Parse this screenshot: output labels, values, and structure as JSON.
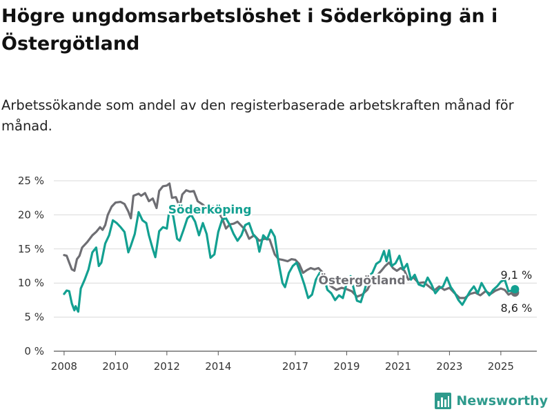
{
  "title": "Högre ungdomsarbetslöshet i Söderköping än i Östergötland",
  "subtitle": "Arbetssökande som andel av den registerbaserade arbetskraften månad för månad.",
  "brand": {
    "name": "Newsworthy",
    "logo_icon": "bar-chart-logo-icon"
  },
  "colors": {
    "soderkoping": "#13a091",
    "ostergotland": "#6e6e73",
    "grid": "#d9d9d9",
    "axis": "#555555"
  },
  "chart_data": {
    "type": "line",
    "ylim": [
      0,
      25
    ],
    "yticks": [
      0,
      5,
      10,
      15,
      20,
      25
    ],
    "ytick_labels": [
      "0 %",
      "5 %",
      "10 %",
      "15 %",
      "20 %",
      "25 %"
    ],
    "xlim": [
      2007.6,
      2026.4
    ],
    "xticks": [
      2008,
      2010,
      2012,
      2014,
      2017,
      2019,
      2021,
      2023,
      2025
    ],
    "xtick_labels": [
      "2008",
      "2010",
      "2012",
      "2014",
      "2017",
      "2019",
      "2021",
      "2023",
      "2025"
    ],
    "grid": "horizontal",
    "series": [
      {
        "name": "Östergötland",
        "color": "#6e6e73",
        "end_label": "8,6 %",
        "points": [
          [
            2008.0,
            14.1
          ],
          [
            2008.1,
            14.0
          ],
          [
            2008.2,
            13.0
          ],
          [
            2008.3,
            12.0
          ],
          [
            2008.4,
            11.8
          ],
          [
            2008.5,
            13.5
          ],
          [
            2008.6,
            14.0
          ],
          [
            2008.7,
            15.2
          ],
          [
            2008.9,
            16.0
          ],
          [
            2009.0,
            16.5
          ],
          [
            2009.1,
            17.0
          ],
          [
            2009.25,
            17.5
          ],
          [
            2009.4,
            18.2
          ],
          [
            2009.5,
            17.8
          ],
          [
            2009.6,
            18.5
          ],
          [
            2009.7,
            20.0
          ],
          [
            2009.85,
            21.2
          ],
          [
            2010.0,
            21.8
          ],
          [
            2010.2,
            21.9
          ],
          [
            2010.35,
            21.6
          ],
          [
            2010.5,
            20.5
          ],
          [
            2010.6,
            19.5
          ],
          [
            2010.7,
            22.8
          ],
          [
            2010.9,
            23.1
          ],
          [
            2011.0,
            22.8
          ],
          [
            2011.15,
            23.2
          ],
          [
            2011.3,
            22.0
          ],
          [
            2011.45,
            22.4
          ],
          [
            2011.6,
            21.0
          ],
          [
            2011.7,
            23.5
          ],
          [
            2011.85,
            24.2
          ],
          [
            2012.0,
            24.3
          ],
          [
            2012.1,
            24.6
          ],
          [
            2012.2,
            22.5
          ],
          [
            2012.35,
            22.6
          ],
          [
            2012.5,
            21.2
          ],
          [
            2012.6,
            23.0
          ],
          [
            2012.75,
            23.6
          ],
          [
            2012.9,
            23.4
          ],
          [
            2013.05,
            23.5
          ],
          [
            2013.2,
            22.0
          ],
          [
            2013.4,
            21.5
          ],
          [
            2013.6,
            20.8
          ],
          [
            2013.8,
            21.3
          ],
          [
            2014.0,
            20.5
          ],
          [
            2014.15,
            19.5
          ],
          [
            2014.3,
            18.0
          ],
          [
            2014.45,
            18.6
          ],
          [
            2014.6,
            18.7
          ],
          [
            2014.75,
            19.0
          ],
          [
            2014.9,
            18.4
          ],
          [
            2015.05,
            17.8
          ],
          [
            2015.2,
            16.5
          ],
          [
            2015.4,
            17.0
          ],
          [
            2015.6,
            16.2
          ],
          [
            2015.8,
            16.5
          ],
          [
            2016.0,
            16.4
          ],
          [
            2016.2,
            14.2
          ],
          [
            2016.35,
            13.5
          ],
          [
            2016.5,
            13.4
          ],
          [
            2016.7,
            13.2
          ],
          [
            2016.85,
            13.5
          ],
          [
            2017.0,
            13.4
          ],
          [
            2017.15,
            12.8
          ],
          [
            2017.3,
            11.5
          ],
          [
            2017.45,
            11.9
          ],
          [
            2017.6,
            12.2
          ],
          [
            2017.75,
            12.0
          ],
          [
            2017.9,
            12.2
          ],
          [
            2018.05,
            11.6
          ],
          [
            2018.2,
            10.2
          ],
          [
            2018.4,
            9.5
          ],
          [
            2018.6,
            9.0
          ],
          [
            2018.8,
            9.3
          ],
          [
            2019.0,
            9.1
          ],
          [
            2019.2,
            8.8
          ],
          [
            2019.4,
            8.0
          ],
          [
            2019.6,
            8.3
          ],
          [
            2019.8,
            9.0
          ],
          [
            2020.0,
            10.5
          ],
          [
            2020.2,
            11.2
          ],
          [
            2020.35,
            11.8
          ],
          [
            2020.5,
            12.5
          ],
          [
            2020.65,
            13.0
          ],
          [
            2020.8,
            12.2
          ],
          [
            2020.95,
            11.8
          ],
          [
            2021.1,
            12.2
          ],
          [
            2021.25,
            11.8
          ],
          [
            2021.4,
            10.5
          ],
          [
            2021.6,
            10.8
          ],
          [
            2021.8,
            10.0
          ],
          [
            2022.0,
            10.1
          ],
          [
            2022.2,
            9.5
          ],
          [
            2022.4,
            8.9
          ],
          [
            2022.6,
            9.5
          ],
          [
            2022.8,
            9.0
          ],
          [
            2023.0,
            9.3
          ],
          [
            2023.2,
            8.5
          ],
          [
            2023.4,
            7.8
          ],
          [
            2023.6,
            7.8
          ],
          [
            2023.8,
            8.4
          ],
          [
            2024.0,
            8.6
          ],
          [
            2024.2,
            8.2
          ],
          [
            2024.4,
            8.8
          ],
          [
            2024.6,
            8.4
          ],
          [
            2024.8,
            8.9
          ],
          [
            2025.0,
            9.2
          ],
          [
            2025.15,
            9.0
          ],
          [
            2025.3,
            8.3
          ],
          [
            2025.45,
            8.6
          ],
          [
            2025.55,
            8.6
          ]
        ]
      },
      {
        "name": "Söderköping",
        "color": "#13a091",
        "end_label": "9,1 %",
        "points": [
          [
            2008.0,
            8.4
          ],
          [
            2008.1,
            8.9
          ],
          [
            2008.2,
            8.8
          ],
          [
            2008.3,
            7.0
          ],
          [
            2008.4,
            6.0
          ],
          [
            2008.45,
            6.6
          ],
          [
            2008.55,
            5.8
          ],
          [
            2008.65,
            9.2
          ],
          [
            2008.8,
            10.5
          ],
          [
            2008.95,
            12.0
          ],
          [
            2009.1,
            14.5
          ],
          [
            2009.25,
            15.2
          ],
          [
            2009.35,
            12.5
          ],
          [
            2009.45,
            13.0
          ],
          [
            2009.6,
            15.8
          ],
          [
            2009.75,
            17.0
          ],
          [
            2009.9,
            19.2
          ],
          [
            2010.05,
            18.8
          ],
          [
            2010.2,
            18.2
          ],
          [
            2010.35,
            17.5
          ],
          [
            2010.5,
            14.5
          ],
          [
            2010.6,
            15.5
          ],
          [
            2010.75,
            17.2
          ],
          [
            2010.9,
            20.4
          ],
          [
            2011.05,
            19.2
          ],
          [
            2011.2,
            18.8
          ],
          [
            2011.3,
            17.0
          ],
          [
            2011.45,
            15.0
          ],
          [
            2011.55,
            13.8
          ],
          [
            2011.7,
            17.6
          ],
          [
            2011.85,
            18.2
          ],
          [
            2012.0,
            18.0
          ],
          [
            2012.1,
            20.8
          ],
          [
            2012.25,
            19.8
          ],
          [
            2012.4,
            16.5
          ],
          [
            2012.5,
            16.2
          ],
          [
            2012.65,
            17.8
          ],
          [
            2012.8,
            19.5
          ],
          [
            2012.95,
            20.0
          ],
          [
            2013.1,
            19.0
          ],
          [
            2013.25,
            17.0
          ],
          [
            2013.4,
            18.8
          ],
          [
            2013.55,
            17.2
          ],
          [
            2013.7,
            13.7
          ],
          [
            2013.85,
            14.2
          ],
          [
            2014.0,
            17.5
          ],
          [
            2014.15,
            19.3
          ],
          [
            2014.3,
            19.5
          ],
          [
            2014.45,
            18.5
          ],
          [
            2014.6,
            17.2
          ],
          [
            2014.75,
            16.2
          ],
          [
            2014.9,
            17.0
          ],
          [
            2015.05,
            18.5
          ],
          [
            2015.2,
            18.8
          ],
          [
            2015.35,
            17.2
          ],
          [
            2015.5,
            16.5
          ],
          [
            2015.6,
            14.6
          ],
          [
            2015.75,
            17.0
          ],
          [
            2015.9,
            16.4
          ],
          [
            2016.05,
            17.8
          ],
          [
            2016.2,
            16.8
          ],
          [
            2016.35,
            13.0
          ],
          [
            2016.5,
            10.0
          ],
          [
            2016.6,
            9.4
          ],
          [
            2016.75,
            11.5
          ],
          [
            2016.9,
            12.5
          ],
          [
            2017.05,
            13.0
          ],
          [
            2017.2,
            11.5
          ],
          [
            2017.35,
            9.8
          ],
          [
            2017.5,
            7.8
          ],
          [
            2017.65,
            8.3
          ],
          [
            2017.8,
            10.5
          ],
          [
            2017.95,
            11.5
          ],
          [
            2018.1,
            11.0
          ],
          [
            2018.25,
            9.0
          ],
          [
            2018.4,
            8.5
          ],
          [
            2018.55,
            7.5
          ],
          [
            2018.7,
            8.2
          ],
          [
            2018.85,
            7.8
          ],
          [
            2019.0,
            10.0
          ],
          [
            2019.15,
            11.0
          ],
          [
            2019.3,
            8.8
          ],
          [
            2019.4,
            7.4
          ],
          [
            2019.55,
            7.2
          ],
          [
            2019.7,
            9.0
          ],
          [
            2019.85,
            11.0
          ],
          [
            2020.0,
            11.5
          ],
          [
            2020.15,
            12.8
          ],
          [
            2020.3,
            13.2
          ],
          [
            2020.45,
            14.7
          ],
          [
            2020.55,
            13.2
          ],
          [
            2020.65,
            14.8
          ],
          [
            2020.75,
            12.5
          ],
          [
            2020.9,
            12.9
          ],
          [
            2021.05,
            14.0
          ],
          [
            2021.2,
            12.0
          ],
          [
            2021.35,
            12.8
          ],
          [
            2021.5,
            10.5
          ],
          [
            2021.65,
            11.2
          ],
          [
            2021.8,
            9.8
          ],
          [
            2022.0,
            9.5
          ],
          [
            2022.15,
            10.8
          ],
          [
            2022.3,
            9.8
          ],
          [
            2022.45,
            8.5
          ],
          [
            2022.6,
            9.2
          ],
          [
            2022.75,
            9.5
          ],
          [
            2022.9,
            10.8
          ],
          [
            2023.05,
            9.4
          ],
          [
            2023.2,
            8.6
          ],
          [
            2023.35,
            7.5
          ],
          [
            2023.5,
            6.8
          ],
          [
            2023.65,
            7.8
          ],
          [
            2023.8,
            8.8
          ],
          [
            2023.95,
            9.5
          ],
          [
            2024.1,
            8.5
          ],
          [
            2024.25,
            10.0
          ],
          [
            2024.4,
            9.0
          ],
          [
            2024.55,
            8.2
          ],
          [
            2024.7,
            9.0
          ],
          [
            2024.85,
            9.5
          ],
          [
            2025.0,
            10.2
          ],
          [
            2025.15,
            10.5
          ],
          [
            2025.3,
            8.8
          ],
          [
            2025.45,
            8.9
          ],
          [
            2025.55,
            9.1
          ]
        ]
      }
    ],
    "inline_labels": [
      {
        "series": "Söderköping",
        "text": "Söderköping",
        "x": 2012.05,
        "y": 20.2
      },
      {
        "series": "Östergötland",
        "text": "Östergötland",
        "x": 2017.9,
        "y": 9.8
      }
    ]
  }
}
